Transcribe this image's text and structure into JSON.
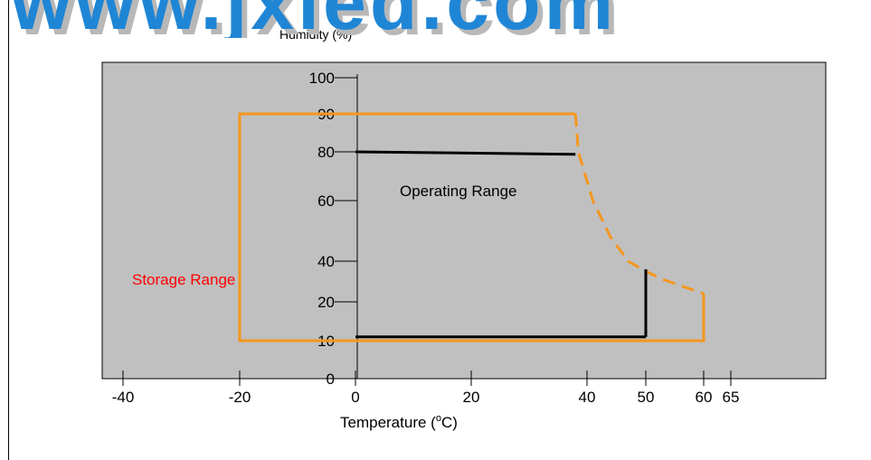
{
  "watermark": {
    "text": "www.jxled.com",
    "color_main": "#1f86d6",
    "color_shadow": "#b8b8b8"
  },
  "chart_data": {
    "type": "line",
    "title": "",
    "ylabel": "Humidity (%)",
    "xlabel_main": "Temperature (",
    "xlabel_sup": "o",
    "xlabel_end": "C)",
    "plot_background": "#c0c0c0",
    "x_ticks": [
      -40,
      -20,
      0,
      20,
      40,
      50,
      60,
      65
    ],
    "y_ticks": [
      0,
      10,
      20,
      40,
      60,
      80,
      90,
      100
    ],
    "grid": false,
    "series": [
      {
        "name": "Storage Range",
        "color": "#f5961e",
        "label": "Storage Range",
        "label_color": "#ff0000",
        "solid_x": [
          38,
          -20,
          -20,
          60,
          60
        ],
        "solid_y": [
          90,
          90,
          10,
          10,
          24
        ],
        "dashed_x": [
          38,
          38.5,
          41,
          44,
          47,
          50,
          53,
          56,
          58,
          60
        ],
        "dashed_y": [
          90,
          80,
          60,
          48,
          40,
          35,
          31,
          28,
          26,
          24
        ]
      },
      {
        "name": "Operating Range",
        "color": "#000000",
        "label": "Operating Range",
        "label_color": "#000000",
        "segments": [
          {
            "x": [
              0,
              38
            ],
            "y": [
              80,
              79
            ]
          },
          {
            "x": [
              0,
              50
            ],
            "y": [
              11,
              11
            ]
          },
          {
            "x": [
              50,
              50
            ],
            "y": [
              11,
              36
            ]
          }
        ]
      }
    ]
  }
}
